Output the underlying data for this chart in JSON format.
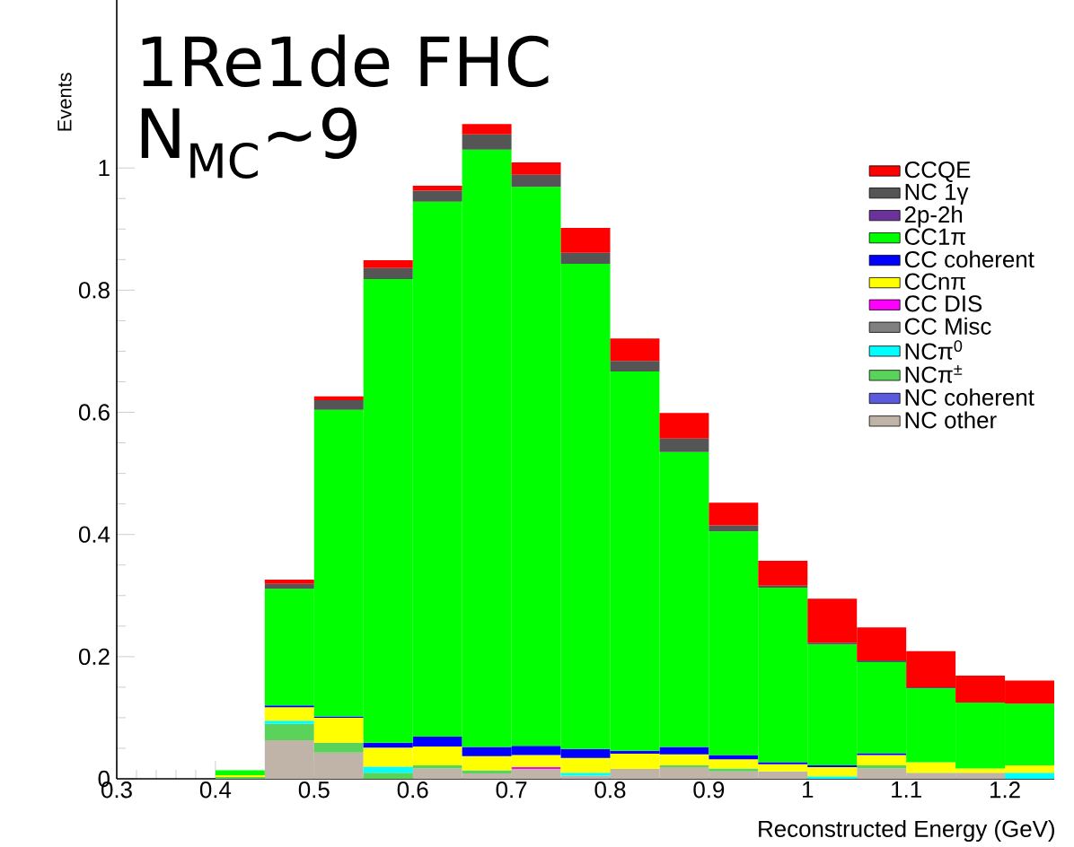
{
  "chart_data": {
    "type": "bar",
    "title": "1Re1de FHC",
    "subtitle": "N$_{MC}$~9",
    "xlabel": "Reconstructed Energy (GeV)",
    "ylabel": "Events",
    "x": [
      0.425,
      0.475,
      0.525,
      0.575,
      0.625,
      0.675,
      0.725,
      0.775,
      0.825,
      0.875,
      0.925,
      0.975,
      1.025,
      1.075,
      1.125,
      1.175,
      1.225
    ],
    "stacked": true,
    "legend": "top right",
    "xlim": [
      0.3,
      1.25
    ],
    "ylim": [
      0,
      1.275
    ],
    "xticks": [
      0.3,
      0.4,
      0.5,
      0.6,
      0.7,
      0.8,
      0.9,
      1,
      1.1,
      1.2
    ],
    "yticks": [
      0,
      0.2,
      0.4,
      0.6,
      0.8,
      1
    ],
    "series": [
      {
        "name": "NC other",
        "color": "#c0b4a8",
        "values": [
          0,
          0.063,
          0.043,
          null,
          0.017,
          0.009,
          0.016,
          0.005,
          0.016,
          0.019,
          0.012,
          0.012,
          0,
          0.017,
          0.01,
          0.01,
          0
        ]
      },
      {
        "name": "NC coherent",
        "color": "#5a5ade",
        "values": [
          0,
          0,
          0,
          0,
          0,
          0,
          0,
          0,
          0,
          0,
          0,
          0,
          0,
          0,
          0,
          0,
          0
        ]
      },
      {
        "name": "NCπ$^{±}$",
        "color": "#5ad35a",
        "values": [
          0.003,
          0.027,
          0.016,
          0.01,
          0.005,
          0.005,
          0,
          0,
          0,
          0.003,
          0.005,
          0,
          0,
          0.005,
          0,
          0,
          0
        ]
      },
      {
        "name": "NCπ$^{0}$",
        "color": "#00ffff",
        "values": [
          0,
          0.005,
          0,
          0.01,
          0,
          0,
          0,
          0.005,
          0,
          0,
          0,
          0,
          0.004,
          0,
          0,
          0,
          0.01
        ]
      },
      {
        "name": "CC Misc",
        "color": "#808080",
        "values": [
          0,
          0,
          0,
          0,
          0,
          0,
          0,
          0,
          0,
          0,
          0,
          0,
          0,
          0,
          0,
          0,
          0
        ]
      },
      {
        "name": "CC DIS",
        "color": "#ff00ff",
        "values": [
          0,
          0,
          0,
          0,
          0,
          0,
          0.003,
          0,
          0,
          0,
          0,
          0,
          0,
          0,
          0,
          0,
          0
        ]
      },
      {
        "name": "CCnπ",
        "color": "#ffff00",
        "values": [
          0.003,
          0.022,
          0.041,
          0.031,
          0.031,
          0.023,
          0.02,
          0.024,
          0.025,
          0.018,
          0.015,
          0.012,
          0.015,
          0.017,
          0.017,
          0.007,
          0.012
        ]
      },
      {
        "name": "CC coherent",
        "color": "#0000ff",
        "values": [
          0,
          0.003,
          0.002,
          0.008,
          0.016,
          0.015,
          0.015,
          0.015,
          0.005,
          0.012,
          0.007,
          0.003,
          0.003,
          0.003,
          0,
          0,
          0
        ]
      },
      {
        "name": "CC1π",
        "color": "#00ff00",
        "values": [
          0.008,
          0.191,
          0.502,
          0.759,
          0.876,
          0.978,
          0.915,
          0.794,
          0.621,
          0.483,
          0.366,
          0.286,
          0.198,
          0.149,
          0.121,
          0.108,
          0.101
        ]
      },
      {
        "name": "2p-2h",
        "color": "#6a329a",
        "values": [
          0,
          0,
          0,
          0,
          0,
          0,
          0,
          0,
          0,
          0,
          0,
          0,
          0,
          0,
          0,
          0,
          0
        ]
      },
      {
        "name": "NC 1γ",
        "color": "#555555",
        "values": [
          0,
          0.008,
          0.016,
          0.018,
          0.018,
          0.025,
          0.02,
          0.018,
          0.017,
          0.022,
          0.01,
          0.003,
          0.003,
          0.003,
          0.002,
          0,
          0
        ]
      },
      {
        "name": "CCQE",
        "color": "#ff0000",
        "values": [
          0,
          0.007,
          0.006,
          0.013,
          0.008,
          0.017,
          0.02,
          0.041,
          0.037,
          0.042,
          0.037,
          0.041,
          0.072,
          0.054,
          0.059,
          0.044,
          0.038
        ]
      }
    ]
  }
}
